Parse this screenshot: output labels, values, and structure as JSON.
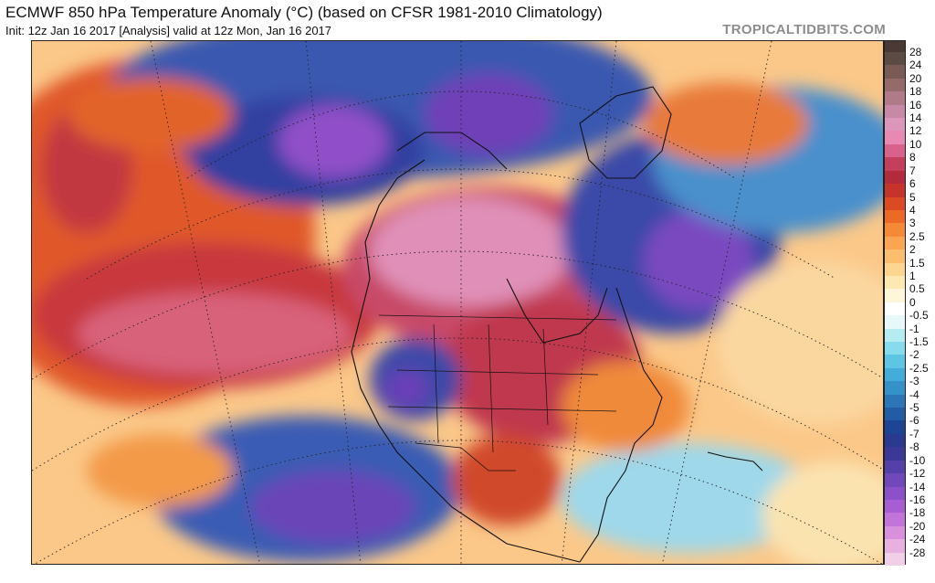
{
  "header": {
    "title": "ECMWF 850 hPa Temperature Anomaly (°C) (based on CFSR 1981-2010 Climatology)",
    "subtitle": "Init: 12z Jan 16 2017   [Analysis]   valid at 12z Mon, Jan 16 2017",
    "brand": "TROPICALTIDBITS.COM"
  },
  "legend": {
    "levels": [
      {
        "label": "28",
        "color": "#5c4a44"
      },
      {
        "label": "24",
        "color": "#7a5a56"
      },
      {
        "label": "20",
        "color": "#946a6a"
      },
      {
        "label": "18",
        "color": "#b07a88"
      },
      {
        "label": "16",
        "color": "#c889a6"
      },
      {
        "label": "14",
        "color": "#dc96bc"
      },
      {
        "label": "12",
        "color": "#e889b4"
      },
      {
        "label": "10",
        "color": "#d8628c"
      },
      {
        "label": "8",
        "color": "#c43f5e"
      },
      {
        "label": "7",
        "color": "#b32a3c"
      },
      {
        "label": "6",
        "color": "#c4342a"
      },
      {
        "label": "5",
        "color": "#db4a22"
      },
      {
        "label": "4",
        "color": "#ec6a26"
      },
      {
        "label": "3",
        "color": "#f58a36"
      },
      {
        "label": "2.5",
        "color": "#f9a552"
      },
      {
        "label": "2",
        "color": "#fbbd6e"
      },
      {
        "label": "1.5",
        "color": "#fcd58e"
      },
      {
        "label": "1",
        "color": "#fde8b2"
      },
      {
        "label": "0.5",
        "color": "#fef6d8"
      },
      {
        "label": "0",
        "color": "#ffffff"
      },
      {
        "label": "-0.5",
        "color": "#e6f8fa"
      },
      {
        "label": "-1",
        "color": "#b4ecf2"
      },
      {
        "label": "-1.5",
        "color": "#86dcec"
      },
      {
        "label": "-2",
        "color": "#5ec6e4"
      },
      {
        "label": "-2.5",
        "color": "#44acd8"
      },
      {
        "label": "-3",
        "color": "#3492c8"
      },
      {
        "label": "-4",
        "color": "#2a76b6"
      },
      {
        "label": "-5",
        "color": "#225ca4"
      },
      {
        "label": "-6",
        "color": "#1e4494"
      },
      {
        "label": "-7",
        "color": "#2a3a8e"
      },
      {
        "label": "-8",
        "color": "#3c3896"
      },
      {
        "label": "-10",
        "color": "#5440a8"
      },
      {
        "label": "-12",
        "color": "#7048ba"
      },
      {
        "label": "-14",
        "color": "#8c50c8"
      },
      {
        "label": "-16",
        "color": "#a85ed2"
      },
      {
        "label": "-18",
        "color": "#c274d8"
      },
      {
        "label": "-20",
        "color": "#d890dc"
      },
      {
        "label": "-24",
        "color": "#e8b0e0"
      },
      {
        "label": "-28",
        "color": "#f2cfe8"
      }
    ]
  }
}
